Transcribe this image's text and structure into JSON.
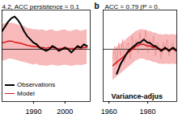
{
  "chart_data": [
    {
      "type": "line",
      "title": "4.2, ACC persistence = 0.1",
      "x": [
        1980,
        1981,
        1982,
        1983,
        1984,
        1985,
        1986,
        1987,
        1988,
        1989,
        1990,
        1991,
        1992,
        1993,
        1994,
        1995,
        1996,
        1997,
        1998,
        1999,
        2000,
        2001,
        2002,
        2003,
        2004,
        2005,
        2006,
        2007
      ],
      "series": [
        {
          "name": "Observations",
          "color": "#000000",
          "values": [
            0.55,
            0.7,
            0.85,
            0.95,
            1.0,
            0.9,
            0.75,
            0.55,
            0.4,
            0.3,
            0.2,
            0.15,
            0.05,
            0.0,
            -0.05,
            0.0,
            0.1,
            0.05,
            -0.05,
            0.0,
            0.05,
            0.0,
            -0.1,
            0.0,
            0.1,
            0.05,
            0.15,
            0.1
          ]
        },
        {
          "name": "Model",
          "color": "#d7191c",
          "values": [
            0.2,
            0.22,
            0.25,
            0.25,
            0.22,
            0.2,
            0.18,
            0.15,
            0.12,
            0.1,
            0.08,
            0.08,
            0.05,
            0.05,
            0.03,
            0.05,
            0.05,
            0.03,
            0.02,
            0.03,
            0.05,
            0.03,
            0.02,
            0.03,
            0.05,
            0.03,
            0.05,
            0.05
          ]
        }
      ],
      "model_range": {
        "color": "#f7b9b9",
        "upper": [
          0.75,
          0.78,
          0.8,
          0.8,
          0.78,
          0.75,
          0.72,
          0.7,
          0.65,
          0.62,
          0.6,
          0.6,
          0.58,
          0.6,
          0.55,
          0.58,
          0.6,
          0.55,
          0.55,
          0.58,
          0.6,
          0.55,
          0.55,
          0.58,
          0.6,
          0.55,
          0.58,
          0.6
        ],
        "lower": [
          -0.35,
          -0.35,
          -0.3,
          -0.3,
          -0.32,
          -0.35,
          -0.38,
          -0.4,
          -0.42,
          -0.45,
          -0.48,
          -0.45,
          -0.5,
          -0.5,
          -0.52,
          -0.5,
          -0.48,
          -0.5,
          -0.52,
          -0.5,
          -0.48,
          -0.5,
          -0.52,
          -0.5,
          -0.48,
          -0.5,
          -0.48,
          -0.45
        ]
      },
      "xlim": [
        1980,
        2008
      ],
      "xticks": [
        1990,
        2000
      ],
      "ylim": [
        -1.6,
        1.2
      ],
      "yticks": [
        0
      ],
      "tick_labels": "x",
      "legend": "lower left"
    },
    {
      "type": "line",
      "panel_label": "b",
      "title": "ACC = 0.79 (P = 0.",
      "annotation": "Variance-adjus",
      "x": [
        1962,
        1963,
        1964,
        1965,
        1966,
        1967,
        1968,
        1969,
        1970,
        1971,
        1972,
        1973,
        1974,
        1975,
        1976,
        1977,
        1978,
        1979,
        1980,
        1981,
        1982,
        1983,
        1984,
        1985,
        1986,
        1987,
        1988,
        1989,
        1990,
        1991,
        1992,
        1993,
        1994,
        1995
      ],
      "series": [
        {
          "name": "Observations",
          "color": "#000000",
          "values": [
            null,
            null,
            -0.75,
            -0.6,
            -0.45,
            -0.35,
            -0.25,
            -0.15,
            -0.05,
            0.0,
            0.05,
            0.1,
            0.15,
            0.2,
            0.2,
            0.25,
            0.3,
            0.25,
            0.2,
            0.2,
            0.15,
            0.1,
            0.1,
            0.05,
            0.0,
            -0.05,
            0.0,
            0.05,
            0.0,
            -0.05,
            0.0,
            0.05,
            0.0,
            -0.05
          ]
        },
        {
          "name": "Model",
          "color": "#d7191c",
          "values": [
            -0.5,
            -0.45,
            -0.4,
            -0.35,
            -0.3,
            -0.25,
            -0.2,
            -0.15,
            -0.1,
            -0.05,
            0.0,
            0.05,
            0.1,
            0.12,
            0.15,
            0.15,
            0.15,
            0.12,
            0.1,
            0.1,
            0.08,
            0.05,
            0.05,
            0.02,
            0.0,
            0.0,
            -0.02,
            0.0,
            0.0,
            -0.02,
            0.0,
            0.0,
            -0.02,
            0.0
          ]
        }
      ],
      "members": {
        "color": "#e98080",
        "values": [
          [
            -0.3,
            0.1,
            -0.5,
            0.2,
            -0.2,
            0.3,
            -0.4,
            0.1,
            0.2,
            -0.3,
            0.4,
            0.0,
            0.3,
            -0.1,
            0.5,
            0.1,
            0.2,
            0.6,
            -0.1,
            0.3,
            0.0,
            0.4,
            -0.2,
            0.2,
            0.1,
            -0.3,
            0.2,
            0.0,
            0.3,
            -0.2,
            0.1,
            0.2,
            -0.1,
            0.1
          ]
        ]
      },
      "model_range": {
        "color": "#f7b9b9",
        "upper": [
          -0.05,
          0.0,
          0.05,
          0.1,
          0.15,
          0.2,
          0.25,
          0.3,
          0.35,
          0.4,
          0.45,
          0.5,
          0.55,
          0.57,
          0.6,
          0.6,
          0.6,
          0.57,
          0.55,
          0.55,
          0.53,
          0.5,
          0.5,
          0.47,
          0.45,
          0.45,
          0.43,
          0.45,
          0.45,
          0.43,
          0.45,
          0.45,
          0.43,
          0.45
        ],
        "lower": [
          -0.95,
          -0.9,
          -0.85,
          -0.8,
          -0.75,
          -0.7,
          -0.65,
          -0.6,
          -0.55,
          -0.5,
          -0.45,
          -0.4,
          -0.35,
          -0.33,
          -0.3,
          -0.3,
          -0.3,
          -0.33,
          -0.35,
          -0.35,
          -0.37,
          -0.4,
          -0.4,
          -0.43,
          -0.45,
          -0.45,
          -0.47,
          -0.45,
          -0.45,
          -0.47,
          -0.45,
          -0.45,
          -0.47,
          -0.45
        ]
      },
      "xlim": [
        1957,
        1995
      ],
      "xticks": [
        1960,
        1980
      ],
      "ylim": [
        -1.6,
        1.2
      ],
      "yticks": [
        0
      ],
      "tick_labels": "x"
    }
  ]
}
